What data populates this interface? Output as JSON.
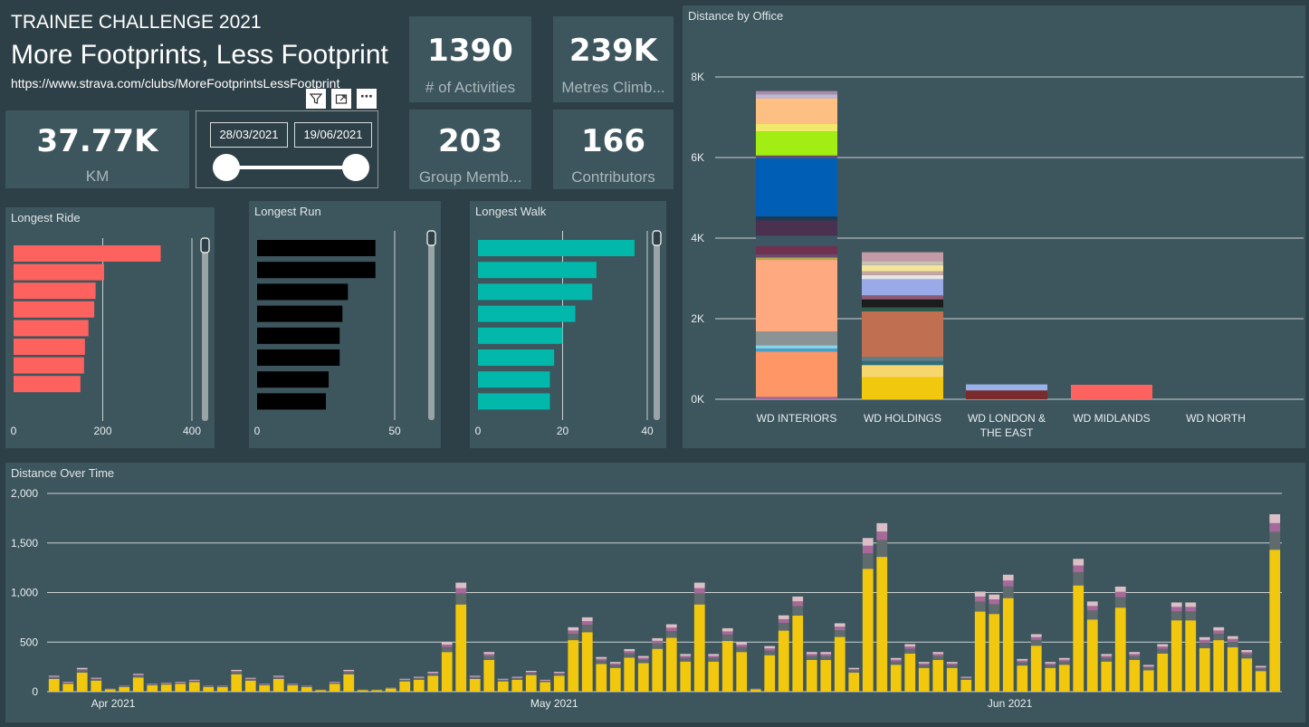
{
  "header": {
    "subtitle": "TRAINEE CHALLENGE 2021",
    "title": "More Footprints, Less Footprint",
    "url": "https://www.strava.com/clubs/MoreFootprintsLessFootprint"
  },
  "kpis": {
    "km": {
      "value": "37.77K",
      "label": "KM"
    },
    "activities": {
      "value": "1390",
      "label": "# of Activities"
    },
    "metres": {
      "value": "239K",
      "label": "Metres Climb..."
    },
    "members": {
      "value": "203",
      "label": "Group Memb..."
    },
    "contributors": {
      "value": "166",
      "label": "Contributors"
    }
  },
  "slicer": {
    "start": "28/03/2021",
    "end": "19/06/2021",
    "start_frac": 0,
    "end_frac": 1
  },
  "visual_header": {
    "filter_icon": "filter-icon",
    "focus_icon": "focus-mode-icon",
    "more_icon": "more-options-icon"
  },
  "longest_ride": {
    "title": "Longest Ride",
    "color": "#fd625e",
    "chart_data": {
      "type": "bar",
      "orientation": "horizontal",
      "values": [
        330,
        203,
        184,
        181,
        168,
        160,
        158,
        150
      ],
      "ticks": [
        0,
        200,
        400
      ],
      "xlim": [
        0,
        400
      ]
    }
  },
  "longest_run": {
    "title": "Longest Run",
    "color": "#000000",
    "chart_data": {
      "type": "bar",
      "orientation": "horizontal",
      "values": [
        43,
        43,
        33,
        31,
        30,
        30,
        26,
        25
      ],
      "ticks": [
        0,
        50
      ],
      "xlim": [
        0,
        50
      ]
    }
  },
  "longest_walk": {
    "title": "Longest Walk",
    "color": "#01b8aa",
    "chart_data": {
      "type": "bar",
      "orientation": "horizontal",
      "values": [
        37,
        28,
        27,
        23,
        20,
        18,
        17,
        17
      ],
      "ticks": [
        0,
        20,
        40
      ],
      "xlim": [
        0,
        40
      ]
    }
  },
  "office_chart": {
    "title": "Distance by Office",
    "chart_data": {
      "type": "bar",
      "stacked": true,
      "categories": [
        "WD INTERIORS",
        "WD HOLDINGS",
        "WD LONDON & THE EAST",
        "WD MIDLANDS",
        "WD NORTH"
      ],
      "category_lines": [
        [
          "WD INTERIORS"
        ],
        [
          "WD HOLDINGS"
        ],
        [
          "WD LONDON &",
          "THE EAST"
        ],
        [
          "WD MIDLANDS"
        ],
        [
          "WD NORTH"
        ]
      ],
      "ylim": [
        0,
        8000
      ],
      "yticks": [
        0,
        2000,
        4000,
        6000,
        8000
      ],
      "ytick_labels": [
        "0K",
        "2K",
        "4K",
        "6K",
        "8K"
      ],
      "stacks": [
        [
          {
            "value": 60,
            "color": "#a66999"
          },
          {
            "value": 1120,
            "color": "#fe9666"
          },
          {
            "value": 80,
            "color": "#4a9fc6"
          },
          {
            "value": 80,
            "color": "#8ad4eb"
          },
          {
            "value": 340,
            "color": "#8a9495"
          },
          {
            "value": 1780,
            "color": "#fea97f"
          },
          {
            "value": 60,
            "color": "#b7a94a"
          },
          {
            "value": 80,
            "color": "#6a4a6e"
          },
          {
            "value": 200,
            "color": "#70304f"
          },
          {
            "value": 260,
            "color": "#3c5663"
          },
          {
            "value": 380,
            "color": "#4b3150"
          },
          {
            "value": 100,
            "color": "#1b3b55"
          },
          {
            "value": 1450,
            "color": "#005fb5"
          },
          {
            "value": 60,
            "color": "#6a4a6e"
          },
          {
            "value": 600,
            "color": "#a1ed14"
          },
          {
            "value": 200,
            "color": "#f2e86b"
          },
          {
            "value": 620,
            "color": "#fdbf82"
          },
          {
            "value": 100,
            "color": "#bfb6d6"
          },
          {
            "value": 80,
            "color": "#a98caa"
          }
        ],
        [
          {
            "value": 550,
            "color": "#f2c80f"
          },
          {
            "value": 300,
            "color": "#f5d76e"
          },
          {
            "value": 100,
            "color": "#2f6d7a"
          },
          {
            "value": 100,
            "color": "#5f7f88"
          },
          {
            "value": 1130,
            "color": "#c07050"
          },
          {
            "value": 100,
            "color": "#2d5b4e"
          },
          {
            "value": 200,
            "color": "#1c1c1c"
          },
          {
            "value": 100,
            "color": "#8d5a73"
          },
          {
            "value": 400,
            "color": "#9aa9e8"
          },
          {
            "value": 100,
            "color": "#e6e6e6"
          },
          {
            "value": 100,
            "color": "#c4a7a1"
          },
          {
            "value": 150,
            "color": "#f5e59a"
          },
          {
            "value": 100,
            "color": "#c8c0b0"
          },
          {
            "value": 220,
            "color": "#c39aa8"
          }
        ],
        [
          {
            "value": 220,
            "color": "#7a2b2b"
          },
          {
            "value": 150,
            "color": "#9ab0e8"
          }
        ],
        [
          {
            "value": 360,
            "color": "#fd625e"
          }
        ],
        []
      ]
    }
  },
  "time_chart": {
    "title": "Distance Over Time",
    "chart_data": {
      "type": "bar",
      "stacked": true,
      "x_start": "2021-03-28",
      "x_end": "2021-06-19",
      "x_tick_labels": [
        "Apr 2021",
        "May 2021",
        "Jun 2021"
      ],
      "x_tick_dates": [
        "2021-04-01",
        "2021-05-01",
        "2021-06-01"
      ],
      "ylim": [
        0,
        2000
      ],
      "yticks": [
        0,
        500,
        1000,
        1500,
        2000
      ],
      "ytick_labels": [
        "0",
        "500",
        "1,000",
        "1,500",
        "2,000"
      ],
      "series_colors": [
        "#f2c80f",
        "#5f6b6d",
        "#a66999",
        "#dcbfc6"
      ],
      "totals": [
        160,
        100,
        240,
        140,
        30,
        60,
        180,
        80,
        90,
        100,
        120,
        60,
        60,
        220,
        140,
        80,
        160,
        80,
        60,
        20,
        100,
        220,
        20,
        20,
        40,
        130,
        150,
        200,
        500,
        1100,
        160,
        400,
        130,
        150,
        210,
        120,
        200,
        650,
        750,
        350,
        300,
        430,
        360,
        540,
        680,
        380,
        1100,
        380,
        640,
        500,
        30,
        460,
        770,
        960,
        400,
        400,
        690,
        240,
        1550,
        1700,
        340,
        480,
        300,
        400,
        300,
        150,
        1010,
        980,
        1180,
        330,
        580,
        300,
        340,
        1340,
        910,
        380,
        1060,
        400,
        270,
        480,
        900,
        900,
        550,
        650,
        560,
        420,
        260,
        1790
      ],
      "shares": [
        0.8,
        0.1,
        0.05,
        0.05
      ]
    }
  }
}
